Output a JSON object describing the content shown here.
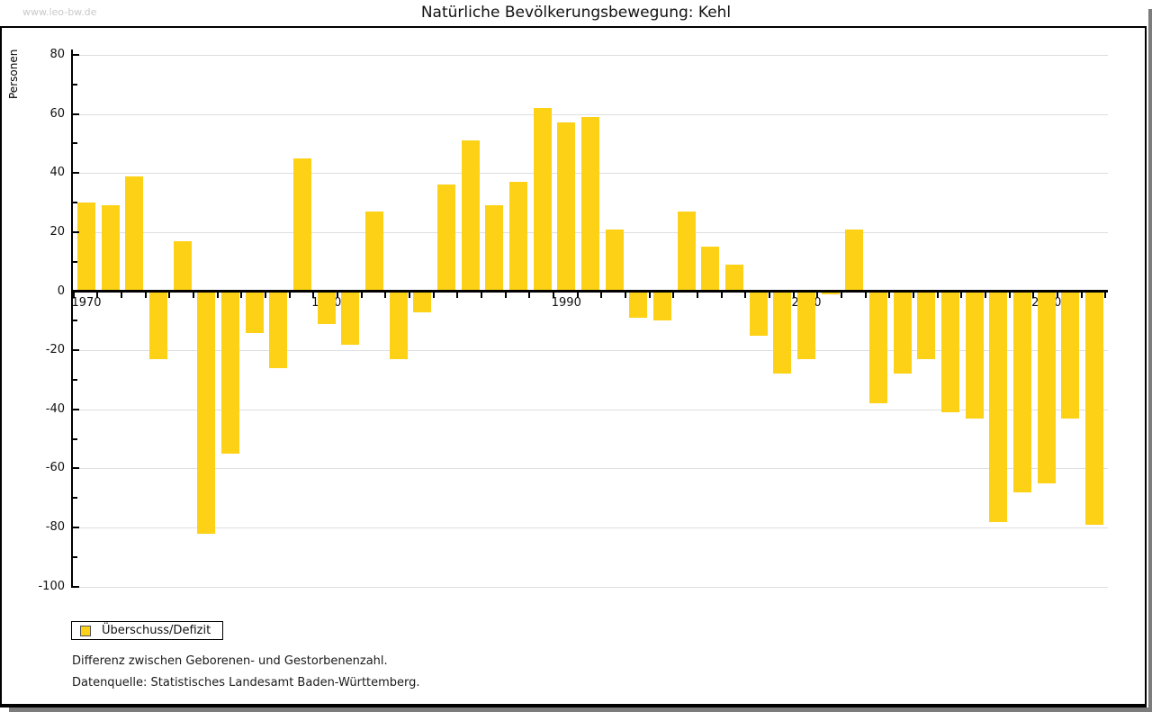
{
  "watermark": "www.leo-bw.de",
  "title": "Natürliche Bevölkerungsbewegung: Kehl",
  "y_axis_title": "Personen",
  "legend": {
    "label": "Überschuss/Defizit"
  },
  "footnotes": [
    "Differenz zwischen Geborenen- und Gestorbenenzahl.",
    "Datenquelle: Statistisches Landesamt Baden-Württemberg."
  ],
  "colors": {
    "bar": "#fcd116",
    "gridline": "#dedede",
    "axis": "#000000",
    "watermark": "#c9c9c9",
    "shadow": "#7c7c7c"
  },
  "chart_data": {
    "type": "bar",
    "title": "Natürliche Bevölkerungsbewegung: Kehl",
    "ylabel": "Personen",
    "xlabel": "",
    "ylim": [
      -100,
      80
    ],
    "grid": true,
    "legend_position": "bottom-left",
    "x": [
      1970,
      1971,
      1972,
      1973,
      1974,
      1975,
      1976,
      1977,
      1978,
      1979,
      1980,
      1981,
      1982,
      1983,
      1984,
      1985,
      1986,
      1987,
      1988,
      1989,
      1990,
      1991,
      1992,
      1993,
      1994,
      1995,
      1996,
      1997,
      1998,
      1999,
      2000,
      2001,
      2002,
      2003,
      2004,
      2005,
      2006,
      2007,
      2008,
      2009,
      2010,
      2011,
      2012
    ],
    "series": [
      {
        "name": "Überschuss/Defizit",
        "values": [
          30,
          29,
          39,
          -23,
          17,
          -82,
          -55,
          -14,
          -26,
          45,
          -11,
          -18,
          27,
          -23,
          -7,
          36,
          51,
          29,
          37,
          62,
          57,
          59,
          21,
          -9,
          -10,
          27,
          15,
          9,
          -15,
          -28,
          -23,
          -1,
          21,
          -38,
          -28,
          -23,
          -41,
          -43,
          -78,
          -68,
          -65,
          -43,
          -79
        ]
      }
    ],
    "y_tick_labels": [
      80,
      60,
      40,
      20,
      0,
      -20,
      -40,
      -60,
      -80,
      -100
    ],
    "x_tick_labels": [
      "1970",
      "1980",
      "1990",
      "2000",
      "2010"
    ],
    "x_label_years": [
      1970,
      1980,
      1990,
      2000,
      2010
    ]
  }
}
